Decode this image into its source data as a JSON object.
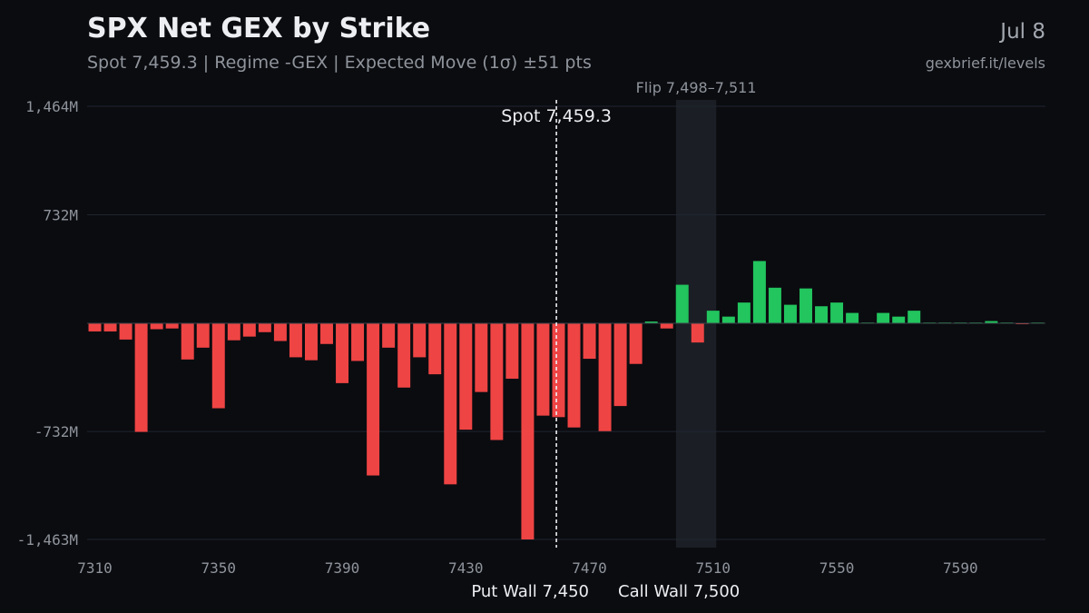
{
  "header": {
    "title": "SPX Net GEX by Strike",
    "subtitle": "Spot 7,459.3 | Regime -GEX | Expected Move (1σ) ±51 pts",
    "date": "Jul 8",
    "source": "gexbrief.it/levels"
  },
  "colors": {
    "background": "#0b0c10",
    "positive": "#22c55e",
    "negative": "#ef4444",
    "grid": "#1f2530",
    "flip_band": "#1b1f25",
    "text_primary": "#eceef2",
    "text_muted": "#8f949c"
  },
  "chart_data": {
    "type": "bar",
    "unit": "M",
    "x": [
      7310,
      7315,
      7320,
      7325,
      7330,
      7335,
      7340,
      7345,
      7350,
      7355,
      7360,
      7365,
      7370,
      7375,
      7380,
      7385,
      7390,
      7395,
      7400,
      7405,
      7410,
      7415,
      7420,
      7425,
      7430,
      7435,
      7440,
      7445,
      7450,
      7455,
      7460,
      7465,
      7470,
      7475,
      7480,
      7485,
      7490,
      7495,
      7500,
      7505,
      7510,
      7515,
      7520,
      7525,
      7530,
      7535,
      7540,
      7545,
      7550,
      7555,
      7560,
      7565,
      7570,
      7575,
      7580,
      7585,
      7590,
      7595,
      7600,
      7605,
      7610,
      7615
    ],
    "values": [
      -55,
      -55,
      -110,
      -735,
      -40,
      -35,
      -245,
      -165,
      -575,
      -115,
      -90,
      -60,
      -120,
      -230,
      -250,
      -140,
      -405,
      -255,
      -1030,
      -165,
      -435,
      -230,
      -345,
      -1090,
      -720,
      -465,
      -790,
      -375,
      -1463,
      -625,
      -635,
      -705,
      -240,
      -730,
      -560,
      -275,
      12,
      -35,
      260,
      -130,
      85,
      45,
      140,
      420,
      240,
      125,
      235,
      115,
      140,
      70,
      5,
      70,
      45,
      85,
      5,
      5,
      5,
      5,
      15,
      5,
      -5,
      5
    ],
    "x_ticks": [
      7310,
      7350,
      7390,
      7430,
      7470,
      7510,
      7550,
      7590
    ],
    "x_tick_labels": [
      "7310",
      "7350",
      "7390",
      "7430",
      "7470",
      "7510",
      "7550",
      "7590"
    ],
    "y_ticks": [
      1464,
      732,
      -732,
      -1463
    ],
    "y_tick_labels": [
      "1,464M",
      "732M",
      "-732M",
      "-1,463M"
    ],
    "ylim": [
      -1463,
      1464
    ],
    "xlim": [
      7307.5,
      7617.5
    ],
    "grid": true,
    "spot": {
      "value": 7459.3,
      "label": "Spot 7,459.3"
    },
    "flip_zone": {
      "from": 7498,
      "to": 7511,
      "label": "Flip 7,498–7,511"
    },
    "put_wall": {
      "value": 7450,
      "label": "Put Wall 7,450"
    },
    "call_wall": {
      "value": 7500,
      "label": "Call Wall 7,500"
    }
  }
}
